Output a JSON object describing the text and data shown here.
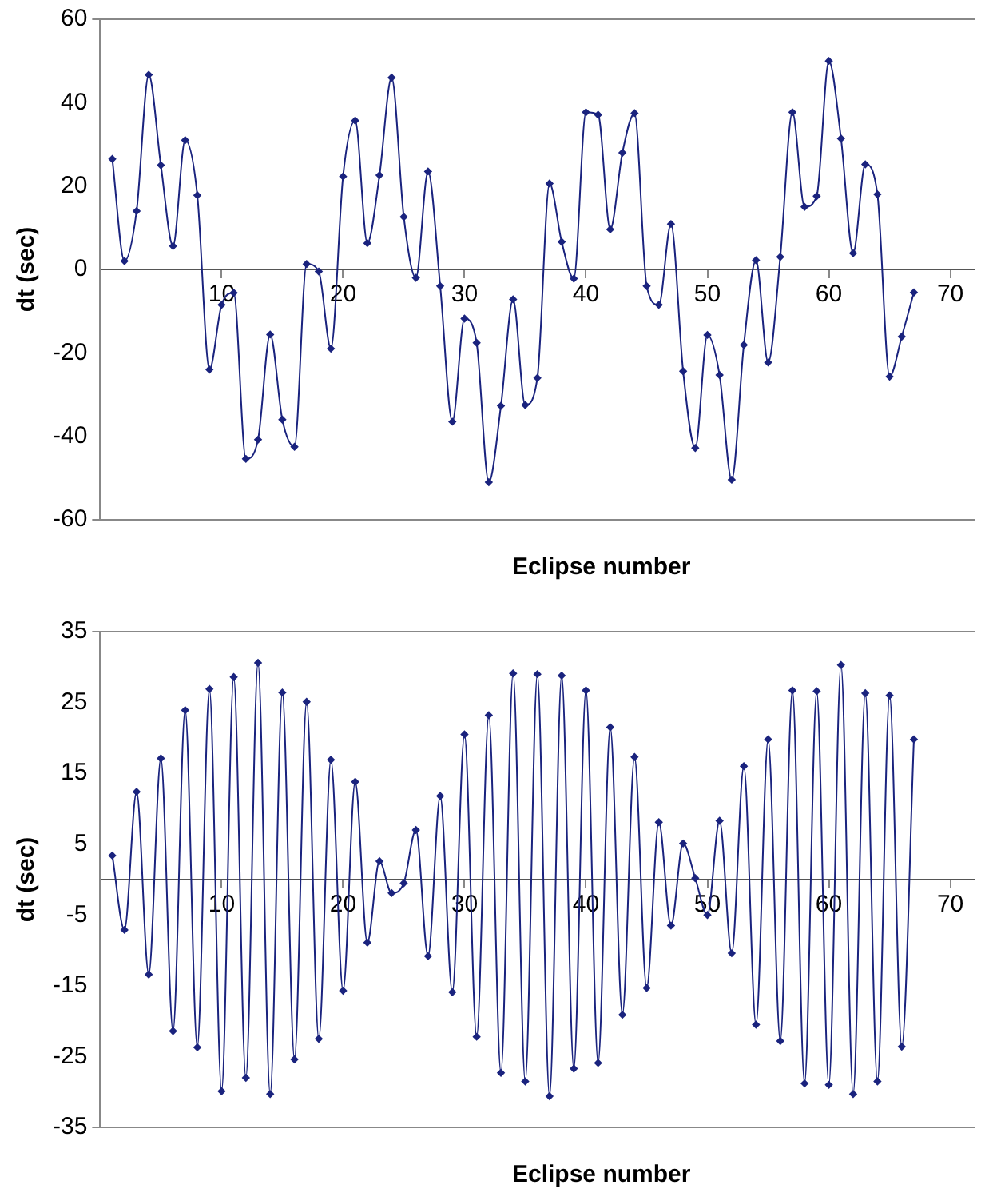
{
  "chart_data": [
    {
      "type": "line",
      "xlabel": "Eclipse number",
      "ylabel": "dt (sec)",
      "x": [
        1,
        2,
        3,
        4,
        5,
        6,
        7,
        8,
        9,
        10,
        11,
        12,
        13,
        14,
        15,
        16,
        17,
        18,
        19,
        20,
        21,
        22,
        23,
        24,
        25,
        26,
        27,
        28,
        29,
        30,
        31,
        32,
        33,
        34,
        35,
        36,
        37,
        38,
        39,
        40,
        41,
        42,
        43,
        44,
        45,
        46,
        47,
        48,
        49,
        50,
        51,
        52,
        53,
        54,
        55,
        56,
        57,
        58,
        59,
        60,
        61,
        62,
        63,
        64,
        65,
        66,
        67
      ],
      "series": [
        {
          "color": "#1a237e",
          "values": [
            26.5,
            2,
            14,
            46.7,
            25,
            5.6,
            31,
            17.8,
            -24,
            -8.5,
            -5.6,
            -45.4,
            -40.8,
            -15.6,
            -36,
            -42.5,
            1.3,
            -0.5,
            -19,
            22.3,
            35.7,
            6.3,
            22.6,
            46,
            12.6,
            -2,
            23.5,
            -4,
            -36.5,
            -11.8,
            -17.6,
            -51,
            -32.7,
            -7.2,
            -32.5,
            -26,
            20.6,
            6.6,
            -2.2,
            37.7,
            37.1,
            9.6,
            28,
            37.5,
            -4,
            -8.5,
            10.9,
            -24.4,
            -42.8,
            -15.7,
            -25.3,
            -50.4,
            -18.1,
            2.2,
            -22.3,
            3,
            37.7,
            15,
            17.6,
            50,
            31.4,
            3.9,
            25.2,
            18,
            -25.7,
            -16.1,
            -5.5
          ]
        }
      ],
      "xlim": [
        0,
        72
      ],
      "xticks": [
        10,
        20,
        30,
        40,
        50,
        60,
        70
      ],
      "ylim": [
        -60,
        60
      ],
      "yticks": [
        -60,
        -40,
        -20,
        0,
        20,
        40,
        60
      ],
      "grid": false,
      "legend": false,
      "marker": "diamond",
      "line_style": "solid"
    },
    {
      "type": "line",
      "xlabel": "Eclipse number",
      "ylabel": "dt (sec)",
      "x": [
        1,
        2,
        3,
        4,
        5,
        6,
        7,
        8,
        9,
        10,
        11,
        12,
        13,
        14,
        15,
        16,
        17,
        18,
        19,
        20,
        21,
        22,
        23,
        24,
        25,
        26,
        27,
        28,
        29,
        30,
        31,
        32,
        33,
        34,
        35,
        36,
        37,
        38,
        39,
        40,
        41,
        42,
        43,
        44,
        45,
        46,
        47,
        48,
        49,
        50,
        51,
        52,
        53,
        54,
        55,
        56,
        57,
        58,
        59,
        60,
        61,
        62,
        63,
        64,
        65,
        66,
        67
      ],
      "series": [
        {
          "color": "#1a237e",
          "values": [
            3.4,
            -7.1,
            12.4,
            -13.4,
            17.1,
            -21.4,
            23.9,
            -23.7,
            26.9,
            -29.9,
            28.6,
            -28,
            30.6,
            -30.3,
            26.4,
            -25.4,
            25.1,
            -22.5,
            16.9,
            -15.7,
            13.8,
            -8.9,
            2.6,
            -1.9,
            -0.5,
            7,
            -10.8,
            11.8,
            -15.9,
            20.5,
            -22.2,
            23.2,
            -27.3,
            29.1,
            -28.5,
            29,
            -30.6,
            28.8,
            -26.7,
            26.7,
            -25.9,
            21.5,
            -19.1,
            17.3,
            -15.3,
            8.1,
            -6.5,
            5.1,
            0.2,
            -5,
            8.3,
            -10.4,
            16,
            -20.5,
            19.8,
            -22.8,
            26.7,
            -28.8,
            26.6,
            -29,
            30.3,
            -30.3,
            26.3,
            -28.5,
            26,
            -23.6,
            19.8
          ]
        }
      ],
      "xlim": [
        0,
        72
      ],
      "xticks": [
        10,
        20,
        30,
        40,
        50,
        60,
        70
      ],
      "ylim": [
        -35,
        35
      ],
      "yticks": [
        -35,
        -25,
        -15,
        -5,
        5,
        15,
        25,
        35
      ],
      "grid": false,
      "legend": false,
      "marker": "diamond",
      "line_style": "solid"
    }
  ]
}
